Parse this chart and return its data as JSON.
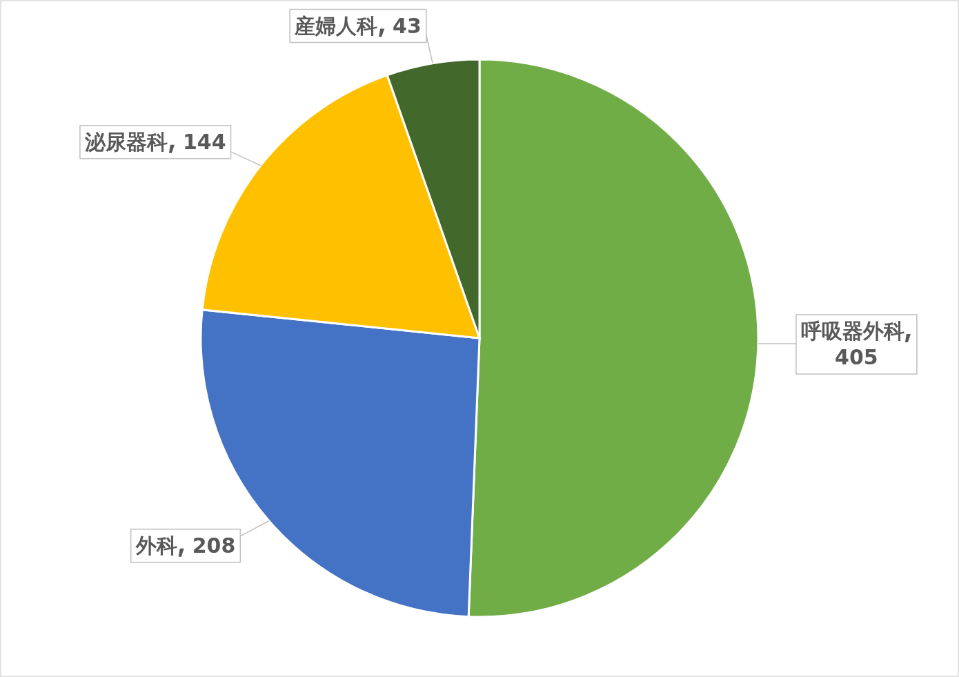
{
  "chart_data": {
    "type": "pie",
    "categories": [
      "呼吸器外科",
      "外科",
      "泌尿器科",
      "産婦人科"
    ],
    "values": [
      405,
      208,
      144,
      43
    ],
    "colors": [
      "#70ad47",
      "#4472c4",
      "#ffc000",
      "#43682b"
    ],
    "data_labels": true
  }
}
